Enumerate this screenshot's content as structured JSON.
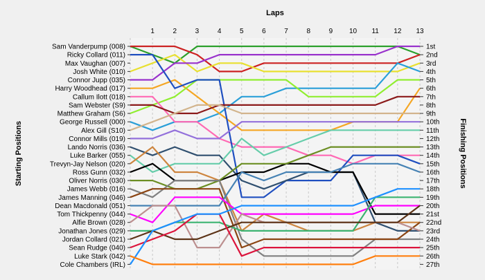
{
  "chart_data": {
    "type": "line",
    "title": "",
    "top_axis_label": "Laps",
    "left_axis_label": "Starting Positions",
    "right_axis_label": "Finishing Positions",
    "laps": [
      0,
      1,
      2,
      3,
      4,
      5,
      6,
      7,
      8,
      9,
      10,
      11,
      12,
      13
    ],
    "top_tick_labels": [
      "1",
      "2",
      "3",
      "4",
      "5",
      "6",
      "7",
      "8",
      "9",
      "10",
      "11",
      "12",
      "13"
    ],
    "start_labels": [
      "Sam Vanderpump (008)",
      "Ricky Collard (011)",
      "Max Vaughan (007)",
      "Josh White (010)",
      "Connor Jupp (035)",
      "Harry Woodhead (017)",
      "Callum Ilott (018)",
      "Sam Webster (S9)",
      "Matthew Graham (S6)",
      "George Russell (000)",
      "Alex Gill (S10)",
      "Connor Mills (019)",
      "Lando Norris (036)",
      "Luke Barker (055)",
      "Trevyn-Jay Nelson (020)",
      "Ross Gunn (032)",
      "Oliver Norris (030)",
      "James Webb (016)",
      "James Manning (046)",
      "Dean Macdonald (051)",
      "Tom Thickpenny (044)",
      "Alfie Brown (028)",
      "Jonathan Jones (029)",
      "Jordan Collard (021)",
      "Sean Rudge (040)",
      "Luke Stark (042)",
      "Cole Chambers (IRL)"
    ],
    "finish_labels": [
      "1st",
      "2nd",
      "3rd",
      "4th",
      "5th",
      "6th",
      "7th",
      "8th",
      "9th",
      "10th",
      "11th",
      "12th",
      "13th",
      "14th",
      "15th",
      "16th",
      "17th",
      "18th",
      "19th",
      "20th",
      "21st",
      "22nd",
      "23rd",
      "24th",
      "25th",
      "26th",
      "27th"
    ],
    "grid": true,
    "series": [
      {
        "color": "#2ca02c",
        "values": [
          1,
          2,
          3,
          1,
          1,
          1,
          1,
          1,
          1,
          1,
          1,
          1,
          1,
          2
        ]
      },
      {
        "color": "#cc2222",
        "values": [
          1,
          1,
          1,
          2,
          4,
          4,
          3,
          3,
          3,
          3,
          3,
          3,
          3,
          2
        ]
      },
      {
        "color": "#e8e030",
        "values": [
          4,
          3,
          2,
          4,
          3,
          3,
          4,
          4,
          4,
          4,
          4,
          4,
          4,
          3
        ]
      },
      {
        "color": "#9932cc",
        "values": [
          5,
          5,
          3,
          3,
          2,
          2,
          2,
          2,
          2,
          2,
          2,
          2,
          1,
          1
        ]
      },
      {
        "color": "#2a9fd8",
        "values": [
          10,
          11,
          10,
          10,
          9,
          7,
          7,
          6,
          6,
          6,
          6,
          6,
          3,
          4
        ]
      },
      {
        "color": "#f5a623",
        "values": [
          6,
          6,
          5,
          7,
          9,
          11,
          11,
          11,
          11,
          11,
          10,
          10,
          10,
          6
        ]
      },
      {
        "color": "#90ee30",
        "values": [
          9,
          8,
          7,
          5,
          5,
          5,
          5,
          5,
          7,
          7,
          7,
          7,
          5,
          5
        ]
      },
      {
        "color": "#ff69b4",
        "values": [
          7,
          7,
          10,
          10,
          12,
          13,
          13,
          13,
          14,
          14,
          15,
          14,
          14,
          14
        ]
      },
      {
        "color": "#1f4fc0",
        "values": [
          2,
          2,
          6,
          5,
          5,
          19,
          19,
          17,
          17,
          17,
          14,
          14,
          14,
          15
        ]
      },
      {
        "color": "#8b1a1a",
        "values": [
          8,
          8,
          9,
          9,
          8,
          8,
          8,
          8,
          8,
          8,
          8,
          8,
          7,
          7
        ]
      },
      {
        "color": "#d2b48c",
        "values": [
          11,
          10,
          9,
          8,
          8,
          9,
          9,
          9,
          9,
          9,
          9,
          9,
          9,
          9
        ]
      },
      {
        "color": "#9370db",
        "values": [
          12,
          12,
          11,
          12,
          12,
          10,
          10,
          10,
          10,
          10,
          10,
          10,
          10,
          10
        ]
      },
      {
        "color": "#2f4f6f",
        "values": [
          13,
          14,
          13,
          14,
          14,
          17,
          18,
          17,
          16,
          16,
          16,
          22,
          23,
          23
        ]
      },
      {
        "color": "#66cdaa",
        "values": [
          14,
          16,
          15,
          15,
          15,
          12,
          14,
          13,
          12,
          11,
          11,
          11,
          11,
          11
        ]
      },
      {
        "color": "#cd853f",
        "values": [
          15,
          13,
          16,
          16,
          17,
          23,
          21,
          22,
          23,
          23,
          23,
          22,
          22,
          22
        ]
      },
      {
        "color": "#000000",
        "values": [
          16,
          15,
          17,
          17,
          17,
          16,
          16,
          15,
          15,
          16,
          16,
          21,
          21,
          21
        ]
      },
      {
        "color": "#6b8e23",
        "values": [
          17,
          17,
          18,
          18,
          17,
          15,
          15,
          15,
          14,
          13,
          13,
          13,
          13,
          13
        ]
      },
      {
        "color": "#808080",
        "values": [
          18,
          19,
          17,
          17,
          17,
          24,
          26,
          26,
          26,
          26,
          26,
          24,
          24,
          24
        ]
      },
      {
        "color": "#8b4513",
        "values": [
          19,
          18,
          18,
          18,
          18,
          25,
          24,
          24,
          24,
          24,
          24,
          24,
          24,
          22
        ]
      },
      {
        "color": "#4682b4",
        "values": [
          20,
          20,
          20,
          20,
          20,
          16,
          17,
          16,
          16,
          16,
          15,
          15,
          15,
          16
        ]
      },
      {
        "color": "#ff00ff",
        "values": [
          21,
          22,
          19,
          19,
          19,
          21,
          21,
          21,
          21,
          21,
          21,
          20,
          20,
          20
        ]
      },
      {
        "color": "#bc8f8f",
        "values": [
          22,
          20,
          20,
          25,
          25,
          21,
          22,
          22,
          22,
          22,
          22,
          22,
          22,
          23
        ]
      },
      {
        "color": "#3cb371",
        "values": [
          23,
          23,
          22,
          22,
          22,
          23,
          23,
          23,
          23,
          23,
          23,
          19,
          19,
          19
        ]
      },
      {
        "color": "#5c3317",
        "values": [
          24,
          23,
          24,
          24,
          23,
          22,
          22,
          22,
          22,
          22,
          22,
          22,
          22,
          20
        ]
      },
      {
        "color": "#dc143c",
        "values": [
          25,
          24,
          23,
          21,
          21,
          26,
          25,
          25,
          25,
          25,
          25,
          25,
          25,
          25
        ]
      },
      {
        "color": "#1e90ff",
        "values": [
          27,
          23,
          22,
          21,
          21,
          20,
          20,
          20,
          20,
          20,
          20,
          19,
          18,
          18
        ]
      },
      {
        "color": "#ff7f0e",
        "values": [
          26,
          27,
          27,
          27,
          27,
          27,
          27,
          27,
          27,
          27,
          27,
          26,
          26,
          26
        ]
      }
    ]
  }
}
